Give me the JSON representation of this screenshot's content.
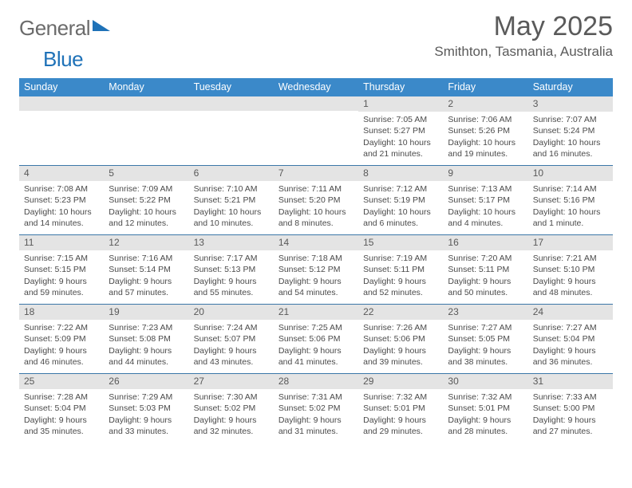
{
  "logo": {
    "text1": "General",
    "text2": "Blue"
  },
  "title": "May 2025",
  "location": "Smithton, Tasmania, Australia",
  "colors": {
    "headerBar": "#3b89c9",
    "weekDivider": "#3b77a8",
    "dayBar": "#e4e4e4",
    "text": "#4a4a4a",
    "logoBlue": "#1f72b8",
    "background": "#ffffff"
  },
  "weekdays": [
    "Sunday",
    "Monday",
    "Tuesday",
    "Wednesday",
    "Thursday",
    "Friday",
    "Saturday"
  ],
  "weeks": [
    [
      {
        "n": "",
        "lines": []
      },
      {
        "n": "",
        "lines": []
      },
      {
        "n": "",
        "lines": []
      },
      {
        "n": "",
        "lines": []
      },
      {
        "n": "1",
        "lines": [
          "Sunrise: 7:05 AM",
          "Sunset: 5:27 PM",
          "Daylight: 10 hours and 21 minutes."
        ]
      },
      {
        "n": "2",
        "lines": [
          "Sunrise: 7:06 AM",
          "Sunset: 5:26 PM",
          "Daylight: 10 hours and 19 minutes."
        ]
      },
      {
        "n": "3",
        "lines": [
          "Sunrise: 7:07 AM",
          "Sunset: 5:24 PM",
          "Daylight: 10 hours and 16 minutes."
        ]
      }
    ],
    [
      {
        "n": "4",
        "lines": [
          "Sunrise: 7:08 AM",
          "Sunset: 5:23 PM",
          "Daylight: 10 hours and 14 minutes."
        ]
      },
      {
        "n": "5",
        "lines": [
          "Sunrise: 7:09 AM",
          "Sunset: 5:22 PM",
          "Daylight: 10 hours and 12 minutes."
        ]
      },
      {
        "n": "6",
        "lines": [
          "Sunrise: 7:10 AM",
          "Sunset: 5:21 PM",
          "Daylight: 10 hours and 10 minutes."
        ]
      },
      {
        "n": "7",
        "lines": [
          "Sunrise: 7:11 AM",
          "Sunset: 5:20 PM",
          "Daylight: 10 hours and 8 minutes."
        ]
      },
      {
        "n": "8",
        "lines": [
          "Sunrise: 7:12 AM",
          "Sunset: 5:19 PM",
          "Daylight: 10 hours and 6 minutes."
        ]
      },
      {
        "n": "9",
        "lines": [
          "Sunrise: 7:13 AM",
          "Sunset: 5:17 PM",
          "Daylight: 10 hours and 4 minutes."
        ]
      },
      {
        "n": "10",
        "lines": [
          "Sunrise: 7:14 AM",
          "Sunset: 5:16 PM",
          "Daylight: 10 hours and 1 minute."
        ]
      }
    ],
    [
      {
        "n": "11",
        "lines": [
          "Sunrise: 7:15 AM",
          "Sunset: 5:15 PM",
          "Daylight: 9 hours and 59 minutes."
        ]
      },
      {
        "n": "12",
        "lines": [
          "Sunrise: 7:16 AM",
          "Sunset: 5:14 PM",
          "Daylight: 9 hours and 57 minutes."
        ]
      },
      {
        "n": "13",
        "lines": [
          "Sunrise: 7:17 AM",
          "Sunset: 5:13 PM",
          "Daylight: 9 hours and 55 minutes."
        ]
      },
      {
        "n": "14",
        "lines": [
          "Sunrise: 7:18 AM",
          "Sunset: 5:12 PM",
          "Daylight: 9 hours and 54 minutes."
        ]
      },
      {
        "n": "15",
        "lines": [
          "Sunrise: 7:19 AM",
          "Sunset: 5:11 PM",
          "Daylight: 9 hours and 52 minutes."
        ]
      },
      {
        "n": "16",
        "lines": [
          "Sunrise: 7:20 AM",
          "Sunset: 5:11 PM",
          "Daylight: 9 hours and 50 minutes."
        ]
      },
      {
        "n": "17",
        "lines": [
          "Sunrise: 7:21 AM",
          "Sunset: 5:10 PM",
          "Daylight: 9 hours and 48 minutes."
        ]
      }
    ],
    [
      {
        "n": "18",
        "lines": [
          "Sunrise: 7:22 AM",
          "Sunset: 5:09 PM",
          "Daylight: 9 hours and 46 minutes."
        ]
      },
      {
        "n": "19",
        "lines": [
          "Sunrise: 7:23 AM",
          "Sunset: 5:08 PM",
          "Daylight: 9 hours and 44 minutes."
        ]
      },
      {
        "n": "20",
        "lines": [
          "Sunrise: 7:24 AM",
          "Sunset: 5:07 PM",
          "Daylight: 9 hours and 43 minutes."
        ]
      },
      {
        "n": "21",
        "lines": [
          "Sunrise: 7:25 AM",
          "Sunset: 5:06 PM",
          "Daylight: 9 hours and 41 minutes."
        ]
      },
      {
        "n": "22",
        "lines": [
          "Sunrise: 7:26 AM",
          "Sunset: 5:06 PM",
          "Daylight: 9 hours and 39 minutes."
        ]
      },
      {
        "n": "23",
        "lines": [
          "Sunrise: 7:27 AM",
          "Sunset: 5:05 PM",
          "Daylight: 9 hours and 38 minutes."
        ]
      },
      {
        "n": "24",
        "lines": [
          "Sunrise: 7:27 AM",
          "Sunset: 5:04 PM",
          "Daylight: 9 hours and 36 minutes."
        ]
      }
    ],
    [
      {
        "n": "25",
        "lines": [
          "Sunrise: 7:28 AM",
          "Sunset: 5:04 PM",
          "Daylight: 9 hours and 35 minutes."
        ]
      },
      {
        "n": "26",
        "lines": [
          "Sunrise: 7:29 AM",
          "Sunset: 5:03 PM",
          "Daylight: 9 hours and 33 minutes."
        ]
      },
      {
        "n": "27",
        "lines": [
          "Sunrise: 7:30 AM",
          "Sunset: 5:02 PM",
          "Daylight: 9 hours and 32 minutes."
        ]
      },
      {
        "n": "28",
        "lines": [
          "Sunrise: 7:31 AM",
          "Sunset: 5:02 PM",
          "Daylight: 9 hours and 31 minutes."
        ]
      },
      {
        "n": "29",
        "lines": [
          "Sunrise: 7:32 AM",
          "Sunset: 5:01 PM",
          "Daylight: 9 hours and 29 minutes."
        ]
      },
      {
        "n": "30",
        "lines": [
          "Sunrise: 7:32 AM",
          "Sunset: 5:01 PM",
          "Daylight: 9 hours and 28 minutes."
        ]
      },
      {
        "n": "31",
        "lines": [
          "Sunrise: 7:33 AM",
          "Sunset: 5:00 PM",
          "Daylight: 9 hours and 27 minutes."
        ]
      }
    ]
  ]
}
